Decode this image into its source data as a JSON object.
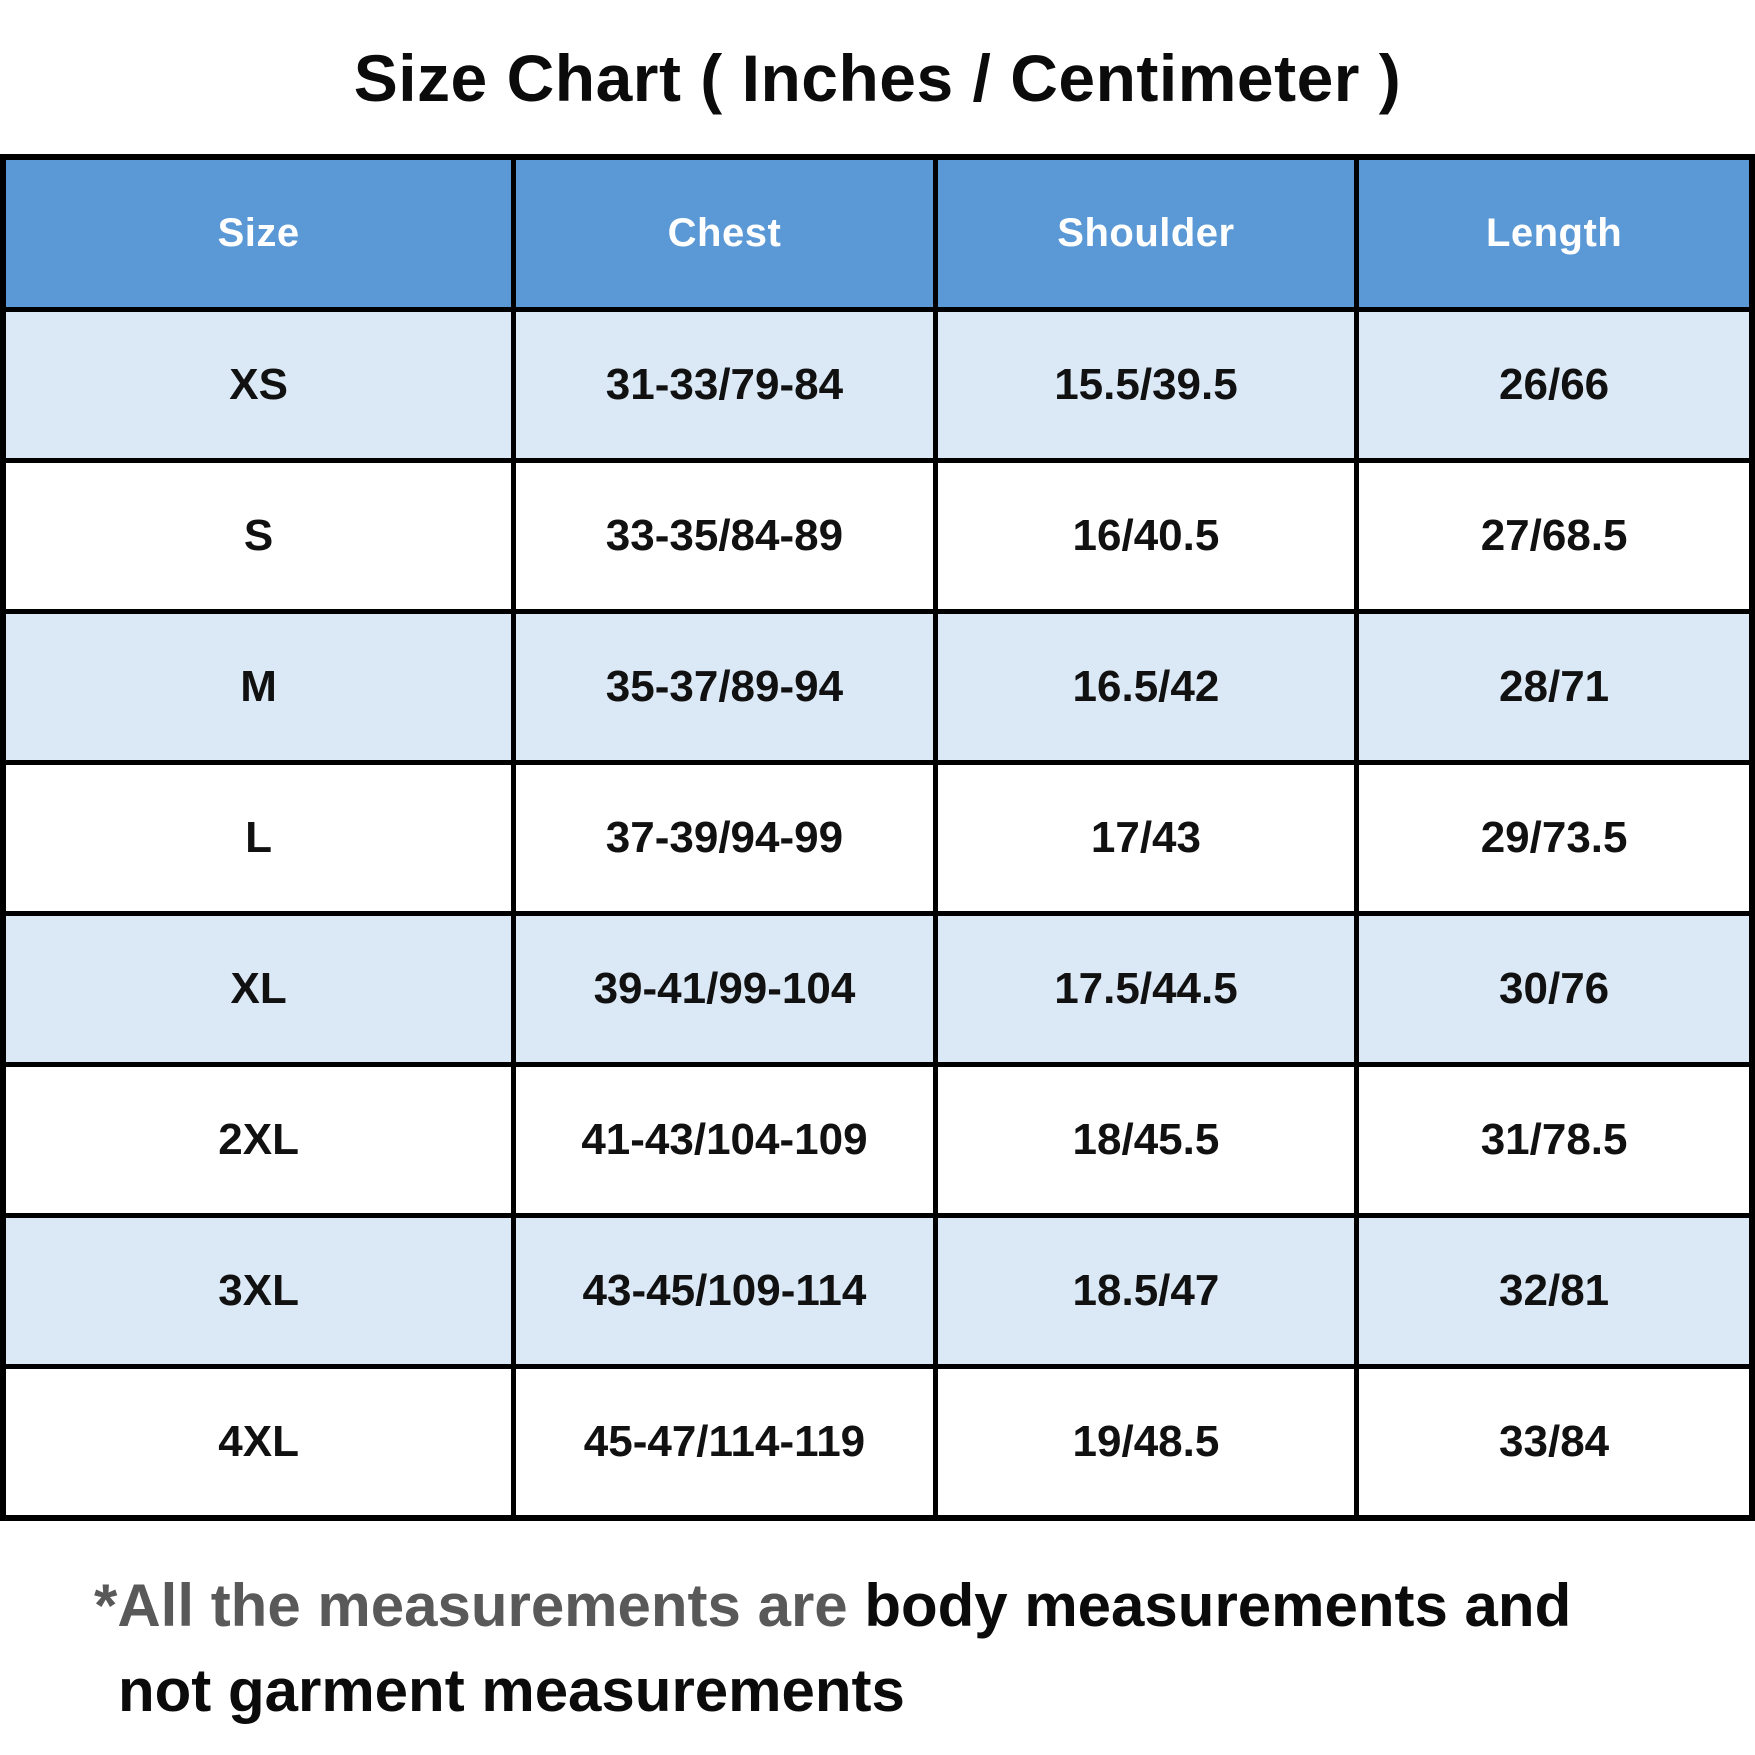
{
  "title": "Size Chart ( Inches / Centimeter )",
  "chart_data": {
    "type": "table",
    "title": "Size Chart ( Inches / Centimeter )",
    "columns": [
      "Size",
      "Chest",
      "Shoulder",
      "Length"
    ],
    "rows": [
      [
        "XS",
        "31-33/79-84",
        "15.5/39.5",
        "26/66"
      ],
      [
        "S",
        "33-35/84-89",
        "16/40.5",
        "27/68.5"
      ],
      [
        "M",
        "35-37/89-94",
        "16.5/42",
        "28/71"
      ],
      [
        "L",
        "37-39/94-99",
        "17/43",
        "29/73.5"
      ],
      [
        "XL",
        "39-41/99-104",
        "17.5/44.5",
        "30/76"
      ],
      [
        "2XL",
        "41-43/104-109",
        "18/45.5",
        "31/78.5"
      ],
      [
        "3XL",
        "43-45/109-114",
        "18.5/47",
        "32/81"
      ],
      [
        "4XL",
        "45-47/114-119",
        "19/48.5",
        "33/84"
      ]
    ],
    "layout": {
      "header_position": "top",
      "row_striping": "odd-rows-light-blue",
      "grid": true
    }
  },
  "footnote": {
    "gray_text": "*All the measurements are",
    "black_text_line1": "body measurements and",
    "black_text_line2": "not garment measurements"
  },
  "colors": {
    "header_bg": "#5b99d6",
    "header_text": "#ffffff",
    "row_alt_bg": "#dbe8f5",
    "row_bg": "#ffffff",
    "border": "#000000",
    "footnote_gray": "#595959",
    "body_text": "#111111"
  }
}
